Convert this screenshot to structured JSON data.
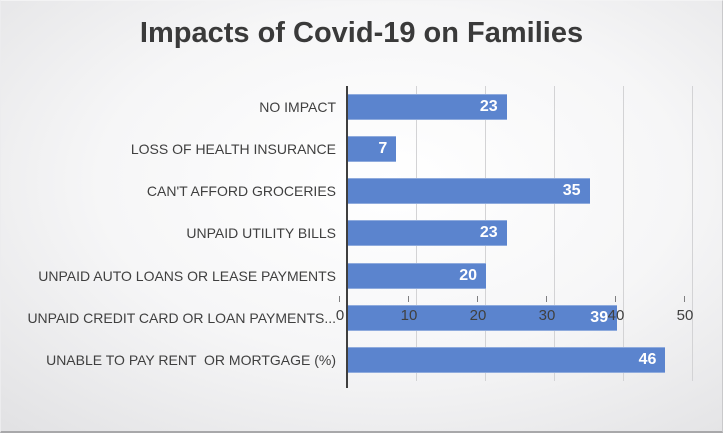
{
  "title": "Impacts of Covid-19 on Families",
  "chart_data": {
    "type": "bar",
    "orientation": "horizontal",
    "title": "Impacts of Covid-19 on Families",
    "categories": [
      "NO IMPACT",
      "LOSS OF HEALTH INSURANCE",
      "CAN'T AFFORD GROCERIES",
      "UNPAID UTILITY BILLS",
      "UNPAID AUTO LOANS OR LEASE PAYMENTS",
      "UNPAID CREDIT CARD OR LOAN PAYMENTS...",
      "UNABLE TO PAY RENT  OR MORTGAGE (%)"
    ],
    "values": [
      23,
      7,
      35,
      23,
      20,
      39,
      46
    ],
    "xlabel": "",
    "ylabel": "",
    "xlim": [
      0,
      50
    ],
    "xticks": [
      0,
      10,
      20,
      30,
      40,
      50
    ],
    "grid": true,
    "legend": "none",
    "bar_color": "#5b84ce",
    "bar_label_color": "#ffffff",
    "axis_color": "#3f3f3f",
    "gridline_color": "#d3d3d5",
    "tick_label_color": "#404040",
    "title_color": "#3a3a3a"
  }
}
